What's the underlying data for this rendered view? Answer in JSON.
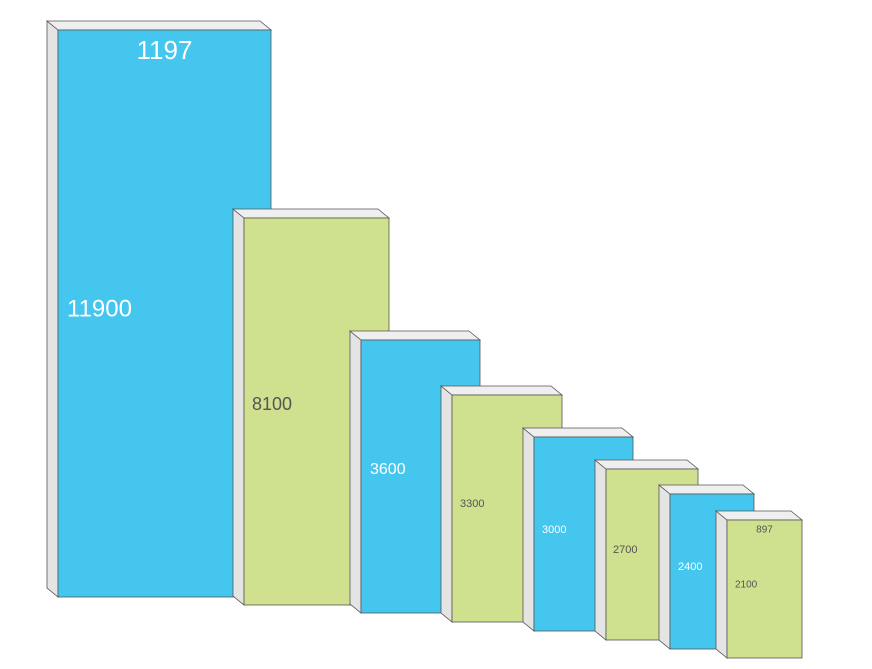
{
  "boxes": [
    {
      "value": 11900,
      "top": 1197,
      "color": "#45c6ef"
    },
    {
      "value": 8100,
      "color": "#cfe08e"
    },
    {
      "value": 3600,
      "color": "#45c6ef"
    },
    {
      "value": 3300,
      "color": "#cfe08e"
    },
    {
      "value": 3000,
      "color": "#45c6ef"
    },
    {
      "value": 2700,
      "color": "#cfe08e"
    },
    {
      "value": 2400,
      "color": "#45c6ef"
    },
    {
      "value": 2100,
      "top": 897,
      "color": "#cfe08e"
    }
  ]
}
